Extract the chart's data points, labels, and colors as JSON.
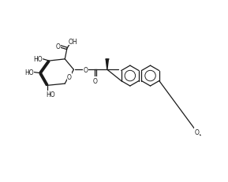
{
  "bg_color": "#ffffff",
  "line_color": "#1a1a1a",
  "line_width": 0.9,
  "font_size": 5.5,
  "figsize": [
    2.89,
    2.32
  ],
  "dpi": 100,
  "xlim": [
    0,
    10
  ],
  "ylim": [
    0,
    8
  ]
}
